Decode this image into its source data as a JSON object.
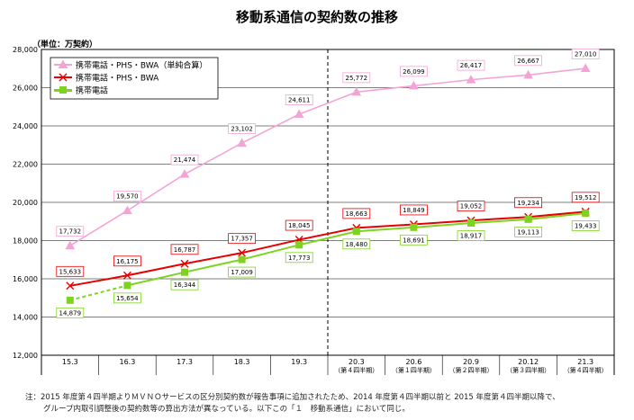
{
  "chart_data": {
    "type": "line",
    "title": "移動系通信の契約数の推移",
    "ylabel": "（単位：万契約）",
    "ylim": [
      12000,
      28000
    ],
    "yticks": [
      "12,000",
      "14,000",
      "16,000",
      "18,000",
      "20,000",
      "22,000",
      "24,000",
      "26,000",
      "28,000"
    ],
    "categories": [
      "15.3",
      "16.3",
      "17.3",
      "18.3",
      "19.3",
      "20.3",
      "20.6",
      "20.9",
      "20.12",
      "21.3"
    ],
    "sub_labels": [
      "",
      "",
      "",
      "",
      "",
      "（第４四半期）",
      "（第１四半期）",
      "（第２四半期）",
      "（第３四半期）",
      "（第４四半期）"
    ],
    "grid": true,
    "legend": "top-left",
    "divider_after": "19.3",
    "series": [
      {
        "name": "携帯電話・PHS・BWA（単純合算）",
        "color": "#f4a4d4",
        "marker": "triangle",
        "values": [
          17732,
          19570,
          21474,
          23102,
          24611,
          25772,
          26099,
          26417,
          26667,
          27010
        ],
        "labels": [
          "17,732",
          "19,570",
          "21,474",
          "23,102",
          "24,611",
          "25,772",
          "26,099",
          "26,417",
          "26,667",
          "27,010"
        ],
        "label_box": "#f4a4d4"
      },
      {
        "name": "携帯電話・PHS・BWA",
        "color": "#e60000",
        "marker": "x",
        "values": [
          15633,
          16175,
          16787,
          17357,
          18045,
          18663,
          18849,
          19052,
          19234,
          19512
        ],
        "labels": [
          "15,633",
          "16,175",
          "16,787",
          "17,357",
          "18,045",
          "18,663",
          "18,849",
          "19,052",
          "19,234",
          "19,512"
        ],
        "label_box": "#e60000"
      },
      {
        "name": "携帯電話",
        "color": "#7ed321",
        "marker": "square",
        "values": [
          14879,
          15654,
          16344,
          17009,
          17773,
          18480,
          18691,
          18917,
          19113,
          19433
        ],
        "labels": [
          "14,879",
          "15,654",
          "16,344",
          "17,009",
          "17,773",
          "18,480",
          "18,691",
          "18,917",
          "19,113",
          "19,433"
        ],
        "label_box": "#7ed321",
        "dashed_first_segment": true
      }
    ]
  },
  "note": {
    "line1": "注：2015 年度第４四半期よりＭＶＮＯサービスの区分別契約数が報告事項に追加されたため、2014 年度第４四半期以前と 2015 年度第４四半期以降で、",
    "line2": "グループ内取引調整後の契約数等の算出方法が異なっている。以下この「１　移動系通信」において同じ。"
  }
}
